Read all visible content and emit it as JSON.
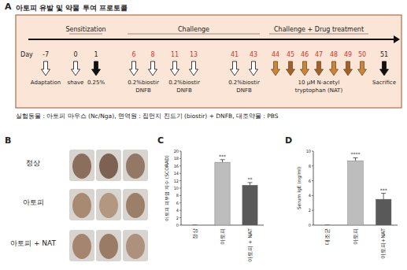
{
  "panel_labels": [
    "A",
    "B",
    "C",
    "D"
  ],
  "protocol": {
    "title": "아토피 유발 및 약물 투여 프로토콜",
    "day_label": "Day",
    "phases": [
      {
        "text": "Sensitization",
        "at": [
          0,
          1
        ]
      },
      {
        "text": "Challenge",
        "at": [
          6,
          43
        ]
      },
      {
        "text": "Challenge + Drug treatment",
        "at": [
          44,
          50
        ]
      }
    ],
    "days": [
      {
        "day": -7,
        "arrow": "open"
      },
      {
        "day": 0,
        "arrow": "open"
      },
      {
        "day": 1,
        "arrow": "filled"
      },
      {
        "day": 6,
        "arrow": "open",
        "color": "red"
      },
      {
        "day": 8,
        "arrow": "open",
        "color": "red"
      },
      {
        "day": 11,
        "arrow": "open",
        "color": "red"
      },
      {
        "day": 13,
        "arrow": "open",
        "color": "red"
      },
      {
        "day": 41,
        "arrow": "open",
        "color": "red"
      },
      {
        "day": 43,
        "arrow": "open",
        "color": "red"
      },
      {
        "day": 44,
        "arrow": "drug",
        "color": "red"
      },
      {
        "day": 45,
        "arrow": "drug",
        "color": "red"
      },
      {
        "day": 46,
        "arrow": "drug",
        "color": "red"
      },
      {
        "day": 47,
        "arrow": "drug",
        "color": "red"
      },
      {
        "day": 48,
        "arrow": "drug",
        "color": "red"
      },
      {
        "day": 49,
        "arrow": "drug",
        "color": "red"
      },
      {
        "day": 50,
        "arrow": "drug",
        "color": "red"
      },
      {
        "day": 51,
        "arrow": "filled"
      }
    ],
    "labels": [
      {
        "lines": [
          "Adaptation"
        ],
        "at": [
          -7
        ]
      },
      {
        "lines": [
          "shave"
        ],
        "at": [
          0
        ]
      },
      {
        "lines": [
          "0.25%"
        ],
        "at": [
          1
        ]
      },
      {
        "lines": [
          "0.2%biostir",
          "DNFB"
        ],
        "at": [
          6,
          8
        ]
      },
      {
        "lines": [
          "0.2%biostir",
          "DNFB"
        ],
        "at": [
          11,
          13
        ]
      },
      {
        "lines": [
          "0.2%biostir",
          "DNFB"
        ],
        "at": [
          41,
          43
        ]
      },
      {
        "lines": [
          "10 μM N-acetyl",
          "tryptophan (NAT)"
        ],
        "at": [
          44,
          50
        ]
      },
      {
        "lines": [
          "Sacrifice"
        ],
        "at": [
          51
        ]
      }
    ],
    "note": "실험동물 : 아토피 마우스 (Nc/Nga), 면역원 : 집먼지 진드기 (biostir) + DNFB, 대조약물 : PBS"
  },
  "photos": {
    "rows": [
      "정상",
      "아토피",
      "아토피 + NAT"
    ]
  },
  "chart_data": [
    {
      "type": "bar",
      "y_label": "아토피 피부염 지수 (SCORAD)",
      "categories": [
        "정상",
        "아토피",
        "아토피 + NAT"
      ],
      "values": [
        0,
        17,
        10.8
      ],
      "errors": [
        0,
        0.7,
        0.7
      ],
      "annotations": [
        null,
        "***",
        "**"
      ],
      "colors": [
        "#bdbdbd",
        "#bdbdbd",
        "#595959"
      ],
      "ylim": [
        0,
        20
      ],
      "yticks": [
        0,
        2,
        4,
        6,
        8,
        10,
        12,
        14,
        16,
        18,
        20
      ]
    },
    {
      "type": "bar",
      "y_label": "Serum IgE (ng/ml)",
      "categories": [
        "대조군",
        "아토피",
        "아토피+NAT"
      ],
      "values": [
        0,
        8.7,
        3.5
      ],
      "errors": [
        0,
        0.4,
        0.8
      ],
      "annotations": [
        null,
        "****",
        "***"
      ],
      "colors": [
        "#bdbdbd",
        "#bdbdbd",
        "#595959"
      ],
      "ylim": [
        0,
        10
      ],
      "yticks": [
        0,
        2,
        4,
        6,
        8,
        10
      ]
    }
  ]
}
